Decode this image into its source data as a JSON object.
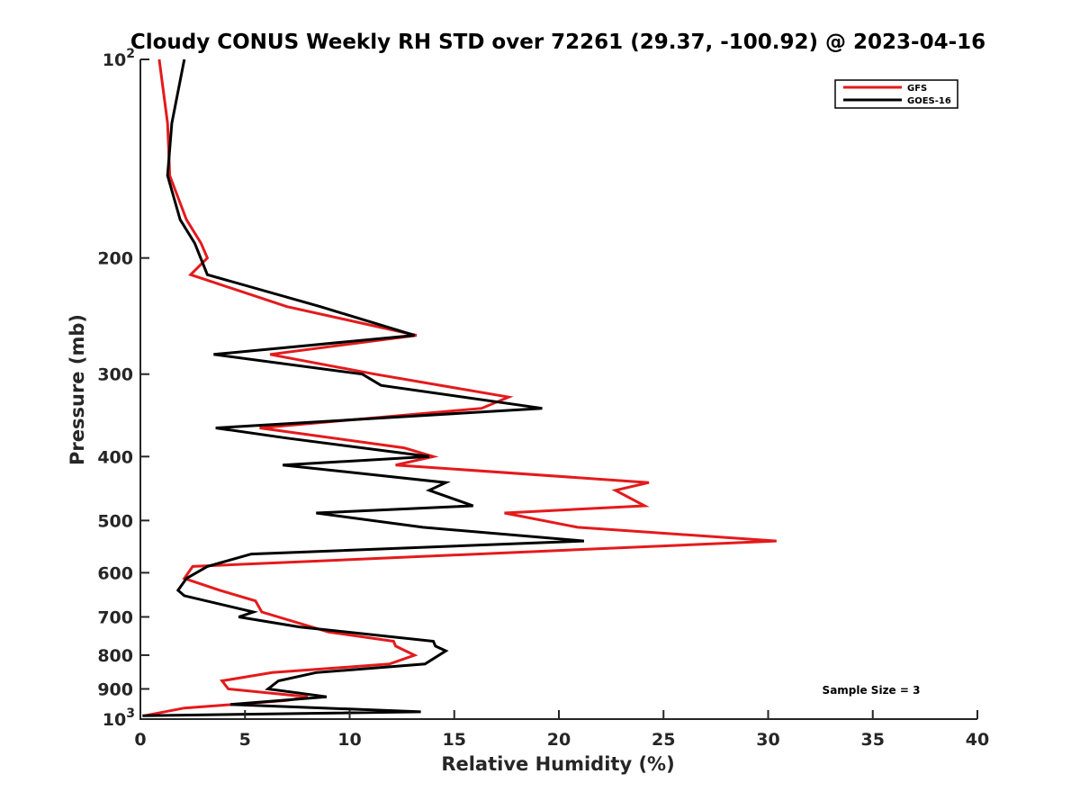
{
  "chart_data": {
    "type": "line",
    "title": "Cloudy CONUS Weekly RH STD over 72261 (29.37, -100.92) @ 2023-04-16",
    "xlabel": "Relative Humidity (%)",
    "ylabel": "Pressure (mb)",
    "xlim": [
      0,
      40
    ],
    "ylim": [
      100,
      1000
    ],
    "y_scale": "log",
    "y_reversed": true,
    "x_ticks": [
      "0",
      "5",
      "10",
      "15",
      "20",
      "25",
      "30",
      "35",
      "40"
    ],
    "y_ticks": [
      {
        "value": 100,
        "base": "10",
        "exp": "2"
      },
      {
        "value": 200,
        "label": "200"
      },
      {
        "value": 300,
        "label": "300"
      },
      {
        "value": 400,
        "label": "400"
      },
      {
        "value": 500,
        "label": "500"
      },
      {
        "value": 600,
        "label": "600"
      },
      {
        "value": 700,
        "label": "700"
      },
      {
        "value": 800,
        "label": "800"
      },
      {
        "value": 900,
        "label": "900"
      },
      {
        "value": 1000,
        "base": "10",
        "exp": "3"
      }
    ],
    "grid": false,
    "legend_position": "top-right",
    "annotation": "Sample Size = 3",
    "series": [
      {
        "name": "GFS",
        "color": "#e41a1c",
        "points": [
          [
            0.9,
            100
          ],
          [
            1.3,
            125
          ],
          [
            1.4,
            150
          ],
          [
            2.2,
            175
          ],
          [
            2.9,
            190
          ],
          [
            3.2,
            200
          ],
          [
            2.4,
            212
          ],
          [
            7.0,
            237
          ],
          [
            13.2,
            262
          ],
          [
            6.2,
            280
          ],
          [
            11.2,
            300
          ],
          [
            17.6,
            325
          ],
          [
            16.3,
            338
          ],
          [
            5.7,
            362
          ],
          [
            12.6,
            388
          ],
          [
            14.0,
            400
          ],
          [
            12.2,
            412
          ],
          [
            24.3,
            438
          ],
          [
            22.7,
            450
          ],
          [
            24.1,
            475
          ],
          [
            17.4,
            487
          ],
          [
            20.9,
            512
          ],
          [
            30.4,
            537
          ],
          [
            2.5,
            587
          ],
          [
            2.1,
            612
          ],
          [
            3.8,
            638
          ],
          [
            5.5,
            662
          ],
          [
            5.8,
            688
          ],
          [
            9.0,
            738
          ],
          [
            12.1,
            762
          ],
          [
            12.2,
            775
          ],
          [
            13.1,
            800
          ],
          [
            11.9,
            825
          ],
          [
            6.3,
            850
          ],
          [
            3.9,
            875
          ],
          [
            4.2,
            900
          ],
          [
            8.0,
            925
          ],
          [
            7.0,
            937
          ],
          [
            2.1,
            962
          ],
          [
            0.2,
            988
          ]
        ]
      },
      {
        "name": "GOES-16",
        "color": "#000000",
        "points": [
          [
            2.1,
            100
          ],
          [
            1.5,
            125
          ],
          [
            1.3,
            150
          ],
          [
            1.9,
            175
          ],
          [
            2.6,
            190
          ],
          [
            3.2,
            212
          ],
          [
            8.6,
            237
          ],
          [
            13.1,
            262
          ],
          [
            3.5,
            280
          ],
          [
            10.6,
            300
          ],
          [
            11.5,
            312
          ],
          [
            19.2,
            338
          ],
          [
            3.6,
            362
          ],
          [
            7.0,
            375
          ],
          [
            13.8,
            400
          ],
          [
            6.8,
            412
          ],
          [
            14.6,
            438
          ],
          [
            13.8,
            450
          ],
          [
            15.9,
            475
          ],
          [
            8.4,
            487
          ],
          [
            13.5,
            512
          ],
          [
            21.2,
            537
          ],
          [
            5.3,
            562
          ],
          [
            3.2,
            587
          ],
          [
            2.2,
            612
          ],
          [
            1.8,
            638
          ],
          [
            2.1,
            650
          ],
          [
            5.4,
            688
          ],
          [
            4.7,
            700
          ],
          [
            7.6,
            725
          ],
          [
            14.0,
            762
          ],
          [
            14.1,
            775
          ],
          [
            14.6,
            788
          ],
          [
            13.6,
            825
          ],
          [
            8.4,
            850
          ],
          [
            6.6,
            875
          ],
          [
            6.1,
            900
          ],
          [
            8.9,
            925
          ],
          [
            4.3,
            950
          ],
          [
            13.4,
            975
          ],
          [
            0.1,
            988
          ]
        ]
      }
    ]
  }
}
